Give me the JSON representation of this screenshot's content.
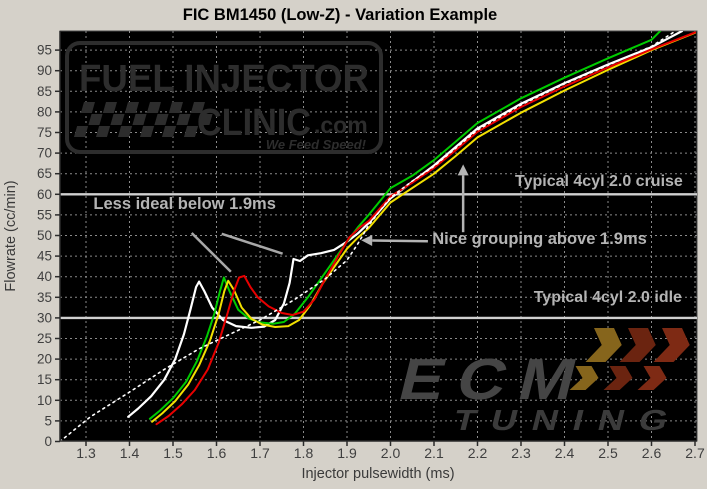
{
  "page": {
    "background": "#d5d1c9",
    "title": "FIC BM1450 (Low-Z) - Variation Example"
  },
  "watermarks": {
    "fic": {
      "line1": "FUEL INJECTOR",
      "line2": "CLINIC",
      "line2_suffix": ".com",
      "tagline": "We Feed Speed!",
      "color": "#2d2d2d"
    },
    "ecm": {
      "line1": "ECM",
      "line2": "TUNING",
      "text_color": "#454545",
      "arrow_colors": [
        "#86651c",
        "#6b2410",
        "#7e2a14"
      ]
    }
  },
  "chart_data": {
    "type": "line",
    "title": "FIC BM1450 (Low-Z) - Variation Example",
    "xlabel": "Injector pulsewidth (ms)",
    "ylabel": "Flowrate (cc/min)",
    "xlim": [
      1.24,
      2.705
    ],
    "ylim": [
      0,
      99.6
    ],
    "x_ticks": [
      1.3,
      1.4,
      1.5,
      1.6,
      1.7,
      1.8,
      1.9,
      2.0,
      2.1,
      2.2,
      2.3,
      2.4,
      2.5,
      2.6,
      2.7
    ],
    "y_ticks": [
      0,
      5,
      10,
      15,
      20,
      25,
      30,
      35,
      40,
      45,
      50,
      55,
      60,
      65,
      70,
      75,
      80,
      85,
      90,
      95
    ],
    "plot_bg": "#000000",
    "grid": {
      "show": true,
      "style": "dashed",
      "color": "#8a8a8a"
    },
    "marker_line_color": "#d0d0d0",
    "annotation_color": "#b4b4b4",
    "reference_lines": [
      {
        "y": 60,
        "label": "Typical 4cyl 2.0 cruise",
        "label_x": 2.672,
        "label_y": 62.0
      },
      {
        "y": 30,
        "label": "Typical 4cyl 2.0 idle",
        "label_x": 2.67,
        "label_y": 33.8
      }
    ],
    "annotations": [
      {
        "text": "Less ideal below 1.9ms",
        "x": 1.317,
        "y": 56.4,
        "anchor": "start",
        "pointer_lines": [
          [
            1.543,
            50.6,
            1.633,
            41.2
          ],
          [
            1.612,
            50.4,
            1.752,
            45.6
          ]
        ]
      },
      {
        "text": "Nice grouping above 1.9ms",
        "x": 2.096,
        "y": 47.9,
        "anchor": "start",
        "arrows": [
          [
            2.086,
            48.6,
            1.958,
            48.8
          ],
          [
            2.167,
            50.8,
            2.167,
            64.6
          ]
        ]
      }
    ],
    "series": [
      {
        "name": "white",
        "color": "#ffffff",
        "style": "solid",
        "width": 2.2,
        "points": [
          [
            1.397,
            6
          ],
          [
            1.42,
            8
          ],
          [
            1.45,
            11
          ],
          [
            1.48,
            15
          ],
          [
            1.505,
            20
          ],
          [
            1.525,
            26
          ],
          [
            1.54,
            32
          ],
          [
            1.553,
            37.5
          ],
          [
            1.56,
            38.8
          ],
          [
            1.572,
            36.5
          ],
          [
            1.59,
            32.5
          ],
          [
            1.615,
            29.5
          ],
          [
            1.645,
            28
          ],
          [
            1.68,
            27.6
          ],
          [
            1.71,
            27.9
          ],
          [
            1.735,
            29.5
          ],
          [
            1.755,
            33.5
          ],
          [
            1.768,
            38.5
          ],
          [
            1.777,
            44.3
          ],
          [
            1.792,
            43.8
          ],
          [
            1.81,
            45.2
          ],
          [
            1.84,
            45.7
          ],
          [
            1.87,
            46.5
          ],
          [
            1.9,
            48.5
          ],
          [
            1.925,
            50.5
          ],
          [
            1.95,
            53
          ],
          [
            2.0,
            59
          ],
          [
            2.05,
            63
          ],
          [
            2.1,
            67
          ],
          [
            2.15,
            71.5
          ],
          [
            2.2,
            76
          ],
          [
            2.3,
            82
          ],
          [
            2.4,
            87
          ],
          [
            2.5,
            91.5
          ],
          [
            2.6,
            95.7
          ],
          [
            2.67,
            99.6
          ]
        ]
      },
      {
        "name": "green",
        "color": "#00cc00",
        "style": "solid",
        "width": 2,
        "points": [
          [
            1.447,
            5.5
          ],
          [
            1.47,
            7.5
          ],
          [
            1.5,
            10.5
          ],
          [
            1.53,
            14.5
          ],
          [
            1.555,
            19.5
          ],
          [
            1.578,
            25.5
          ],
          [
            1.595,
            31
          ],
          [
            1.608,
            36.5
          ],
          [
            1.617,
            39.8
          ],
          [
            1.63,
            36.5
          ],
          [
            1.65,
            32
          ],
          [
            1.675,
            29.8
          ],
          [
            1.7,
            28.9
          ],
          [
            1.73,
            28.6
          ],
          [
            1.755,
            29
          ],
          [
            1.78,
            31
          ],
          [
            1.81,
            35
          ],
          [
            1.84,
            39.5
          ],
          [
            1.87,
            44
          ],
          [
            1.9,
            48.5
          ],
          [
            1.925,
            52
          ],
          [
            1.95,
            55
          ],
          [
            2.0,
            61.5
          ],
          [
            2.05,
            64.5
          ],
          [
            2.1,
            68.3
          ],
          [
            2.15,
            72.8
          ],
          [
            2.2,
            77.3
          ],
          [
            2.3,
            83.3
          ],
          [
            2.4,
            88.3
          ],
          [
            2.5,
            93
          ],
          [
            2.6,
            97.5
          ],
          [
            2.62,
            99.6
          ]
        ]
      },
      {
        "name": "yellow",
        "color": "#f2e000",
        "style": "solid",
        "width": 2,
        "points": [
          [
            1.452,
            4.8
          ],
          [
            1.475,
            6.8
          ],
          [
            1.505,
            9.8
          ],
          [
            1.535,
            13.8
          ],
          [
            1.56,
            18.5
          ],
          [
            1.585,
            24.5
          ],
          [
            1.605,
            31
          ],
          [
            1.618,
            36.5
          ],
          [
            1.627,
            39
          ],
          [
            1.64,
            36.8
          ],
          [
            1.658,
            32.5
          ],
          [
            1.68,
            29.8
          ],
          [
            1.705,
            28.4
          ],
          [
            1.735,
            27.8
          ],
          [
            1.765,
            28
          ],
          [
            1.79,
            29.5
          ],
          [
            1.815,
            33
          ],
          [
            1.845,
            38.5
          ],
          [
            1.875,
            43
          ],
          [
            1.9,
            46.8
          ],
          [
            1.925,
            49.5
          ],
          [
            1.95,
            51.8
          ],
          [
            2.0,
            58
          ],
          [
            2.05,
            61.5
          ],
          [
            2.1,
            65
          ],
          [
            2.15,
            69.3
          ],
          [
            2.2,
            73.8
          ],
          [
            2.3,
            79.8
          ],
          [
            2.4,
            85.2
          ],
          [
            2.5,
            90.2
          ],
          [
            2.6,
            95
          ],
          [
            2.7,
            99.2
          ]
        ]
      },
      {
        "name": "red",
        "color": "#e80000",
        "style": "solid",
        "width": 2,
        "points": [
          [
            1.462,
            4.2
          ],
          [
            1.49,
            6.2
          ],
          [
            1.52,
            9
          ],
          [
            1.55,
            12.5
          ],
          [
            1.58,
            17.5
          ],
          [
            1.605,
            24
          ],
          [
            1.625,
            31
          ],
          [
            1.64,
            36.5
          ],
          [
            1.652,
            39.8
          ],
          [
            1.664,
            40.2
          ],
          [
            1.678,
            37.5
          ],
          [
            1.695,
            35
          ],
          [
            1.72,
            32.8
          ],
          [
            1.75,
            31.2
          ],
          [
            1.775,
            30.7
          ],
          [
            1.8,
            31.5
          ],
          [
            1.825,
            34.5
          ],
          [
            1.85,
            39.5
          ],
          [
            1.88,
            45
          ],
          [
            1.905,
            49.5
          ],
          [
            1.93,
            52
          ],
          [
            1.95,
            53.5
          ],
          [
            2.0,
            59.5
          ],
          [
            2.05,
            62.8
          ],
          [
            2.1,
            66.4
          ],
          [
            2.15,
            70.7
          ],
          [
            2.2,
            75.2
          ],
          [
            2.3,
            81.2
          ],
          [
            2.4,
            86.2
          ],
          [
            2.5,
            90.8
          ],
          [
            2.6,
            95.2
          ],
          [
            2.7,
            99.3
          ]
        ]
      },
      {
        "name": "dotted-reference",
        "color": "#ffffff",
        "style": "dotted",
        "width": 1.6,
        "points": [
          [
            1.24,
            0
          ],
          [
            1.31,
            6
          ],
          [
            1.4,
            12
          ],
          [
            1.48,
            17.5
          ],
          [
            1.56,
            22.5
          ],
          [
            1.63,
            26
          ],
          [
            1.7,
            29.5
          ],
          [
            1.78,
            34.5
          ],
          [
            1.85,
            39.5
          ],
          [
            1.9,
            44
          ],
          [
            1.925,
            48
          ],
          [
            1.95,
            52.5
          ],
          [
            2.0,
            59.2
          ],
          [
            2.05,
            63.2
          ],
          [
            2.1,
            66.8
          ],
          [
            2.15,
            71.2
          ],
          [
            2.2,
            75.6
          ],
          [
            2.3,
            81.7
          ],
          [
            2.4,
            86.8
          ],
          [
            2.5,
            91.3
          ],
          [
            2.6,
            95.9
          ],
          [
            2.655,
            99.6
          ]
        ]
      }
    ]
  }
}
